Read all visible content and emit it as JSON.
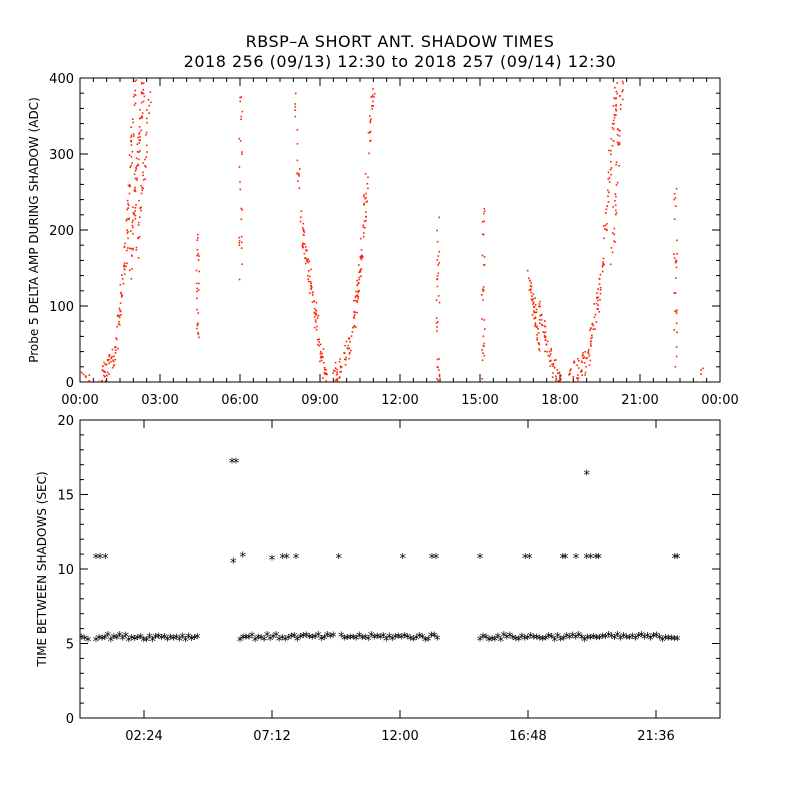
{
  "title": "RBSP–A SHORT ANT. SHADOW TIMES",
  "subtitle": "2018 256 (09/13) 12:30 to 2018 257 (09/14) 12:30",
  "chart_data": [
    {
      "type": "scatter",
      "ylabel": "Probe 5 DELTA AMP DURING SHADOW (ADC)",
      "xlim": [
        0,
        24
      ],
      "ylim": [
        0,
        400
      ],
      "x_tick_labels": [
        "00:00",
        "03:00",
        "06:00",
        "09:00",
        "12:00",
        "15:00",
        "18:00",
        "21:00",
        "00:00"
      ],
      "x_tick_values": [
        0,
        3,
        6,
        9,
        12,
        15,
        18,
        21,
        24
      ],
      "y_tick_labels": [
        "0",
        "100",
        "200",
        "300",
        "400"
      ],
      "y_tick_values": [
        0,
        100,
        200,
        300,
        400
      ],
      "color": "#ff2200",
      "segments": [
        {
          "x0": 0.0,
          "y0": 5,
          "x1": 0.3,
          "y1": 5,
          "n": 10
        },
        {
          "x0": 0.7,
          "y0": 2,
          "x1": 1.3,
          "y1": 40,
          "n": 40
        },
        {
          "x0": 1.3,
          "y0": 40,
          "x1": 1.7,
          "y1": 180,
          "n": 45
        },
        {
          "x0": 1.7,
          "y0": 180,
          "x1": 2.05,
          "y1": 400,
          "n": 45
        },
        {
          "x0": 1.85,
          "y0": 150,
          "x1": 2.35,
          "y1": 400,
          "n": 70
        },
        {
          "x0": 2.1,
          "y0": 170,
          "x1": 2.6,
          "y1": 380,
          "n": 40
        },
        {
          "x0": 4.4,
          "y0": 60,
          "x1": 4.4,
          "y1": 200,
          "n": 25
        },
        {
          "x0": 6.0,
          "y0": 140,
          "x1": 6.0,
          "y1": 400,
          "n": 25
        },
        {
          "x0": 8.0,
          "y0": 380,
          "x1": 8.3,
          "y1": 200,
          "n": 20
        },
        {
          "x0": 8.3,
          "y0": 200,
          "x1": 8.8,
          "y1": 90,
          "n": 50
        },
        {
          "x0": 8.8,
          "y0": 90,
          "x1": 9.2,
          "y1": 0,
          "n": 40
        },
        {
          "x0": 9.5,
          "y0": 5,
          "x1": 10.1,
          "y1": 50,
          "n": 40
        },
        {
          "x0": 10.1,
          "y0": 50,
          "x1": 10.5,
          "y1": 150,
          "n": 45
        },
        {
          "x0": 10.5,
          "y0": 150,
          "x1": 11.0,
          "y1": 400,
          "n": 55
        },
        {
          "x0": 13.4,
          "y0": 0,
          "x1": 13.4,
          "y1": 210,
          "n": 30
        },
        {
          "x0": 15.1,
          "y0": 0,
          "x1": 15.1,
          "y1": 230,
          "n": 30
        },
        {
          "x0": 16.8,
          "y0": 140,
          "x1": 17.2,
          "y1": 50,
          "n": 50
        },
        {
          "x0": 17.2,
          "y0": 100,
          "x1": 17.7,
          "y1": 15,
          "n": 40
        },
        {
          "x0": 17.7,
          "y0": 25,
          "x1": 18.0,
          "y1": 0,
          "n": 20
        },
        {
          "x0": 18.3,
          "y0": 5,
          "x1": 19.0,
          "y1": 30,
          "n": 40
        },
        {
          "x0": 19.0,
          "y0": 30,
          "x1": 19.5,
          "y1": 130,
          "n": 45
        },
        {
          "x0": 19.5,
          "y0": 130,
          "x1": 20.1,
          "y1": 400,
          "n": 60
        },
        {
          "x0": 19.9,
          "y0": 150,
          "x1": 20.3,
          "y1": 400,
          "n": 40
        },
        {
          "x0": 22.3,
          "y0": 0,
          "x1": 22.3,
          "y1": 250,
          "n": 30
        },
        {
          "x0": 23.3,
          "y0": 0,
          "x1": 23.3,
          "y1": 20,
          "n": 4
        }
      ]
    },
    {
      "type": "scatter",
      "ylabel": "TIME BETWEEN SHADOWS (SEC)",
      "xlim": [
        0,
        24
      ],
      "ylim": [
        0,
        20
      ],
      "x_tick_labels": [
        "02:24",
        "07:12",
        "12:00",
        "16:48",
        "21:36"
      ],
      "x_tick_values": [
        2.4,
        7.2,
        12.0,
        16.8,
        21.6
      ],
      "y_tick_labels": [
        "0",
        "5",
        "10",
        "15",
        "20"
      ],
      "y_tick_values": [
        0,
        5,
        10,
        15,
        20
      ],
      "marker": "*",
      "bands": [
        {
          "x0": 0.05,
          "x1": 0.3,
          "y": 5.4
        },
        {
          "x0": 0.6,
          "x1": 4.4,
          "y": 5.4
        },
        {
          "x0": 6.0,
          "x1": 9.5,
          "y": 5.4
        },
        {
          "x0": 9.8,
          "x1": 13.4,
          "y": 5.4
        },
        {
          "x0": 15.0,
          "x1": 22.4,
          "y": 5.4
        }
      ],
      "points": [
        {
          "x": 0.6,
          "y": 10.8
        },
        {
          "x": 0.75,
          "y": 10.8
        },
        {
          "x": 0.95,
          "y": 10.8
        },
        {
          "x": 5.7,
          "y": 17.2
        },
        {
          "x": 5.85,
          "y": 17.2
        },
        {
          "x": 5.75,
          "y": 10.5
        },
        {
          "x": 6.1,
          "y": 10.9
        },
        {
          "x": 7.2,
          "y": 10.7
        },
        {
          "x": 7.6,
          "y": 10.8
        },
        {
          "x": 7.75,
          "y": 10.8
        },
        {
          "x": 8.1,
          "y": 10.8
        },
        {
          "x": 9.7,
          "y": 10.8
        },
        {
          "x": 12.1,
          "y": 10.8
        },
        {
          "x": 13.2,
          "y": 10.8
        },
        {
          "x": 13.35,
          "y": 10.8
        },
        {
          "x": 15.0,
          "y": 10.8
        },
        {
          "x": 16.7,
          "y": 10.8
        },
        {
          "x": 16.85,
          "y": 10.8
        },
        {
          "x": 18.1,
          "y": 10.8
        },
        {
          "x": 18.2,
          "y": 10.8
        },
        {
          "x": 18.6,
          "y": 10.8
        },
        {
          "x": 19.0,
          "y": 16.4
        },
        {
          "x": 19.0,
          "y": 10.8
        },
        {
          "x": 19.15,
          "y": 10.8
        },
        {
          "x": 19.35,
          "y": 10.8
        },
        {
          "x": 19.45,
          "y": 10.8
        },
        {
          "x": 22.3,
          "y": 10.8
        },
        {
          "x": 22.4,
          "y": 10.8
        }
      ]
    }
  ]
}
